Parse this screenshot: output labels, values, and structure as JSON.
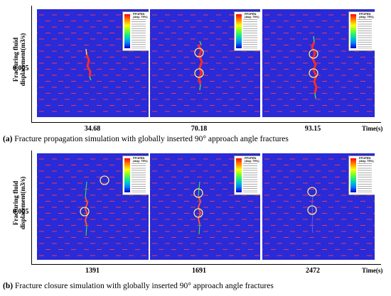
{
  "figure": {
    "y_axis_label_line1": "Fracturing fluid",
    "y_axis_label_line2": "displacement(m3/s)",
    "y_tick_label": "0.005",
    "x_unit_label": "Time(s)",
    "legend_title_line1": "PFOPEN",
    "legend_title_line2": "(Avg: 75%)"
  },
  "subfigures": [
    {
      "label": "(a)",
      "caption": " Fracture propagation simulation with globally inserted 90° approach angle fractures",
      "time_labels": [
        "34.68",
        "70.18",
        "93.15"
      ]
    },
    {
      "label": "(b)",
      "caption": " Fracture closure simulation with globally inserted 90° approach angle fractures",
      "time_labels": [
        "1391",
        "1691",
        "2472"
      ]
    }
  ],
  "colors": {
    "background_blue": "#2a2ad6",
    "fracture_red": "#ff2a2a",
    "highlight_circle": "#ffe680"
  }
}
